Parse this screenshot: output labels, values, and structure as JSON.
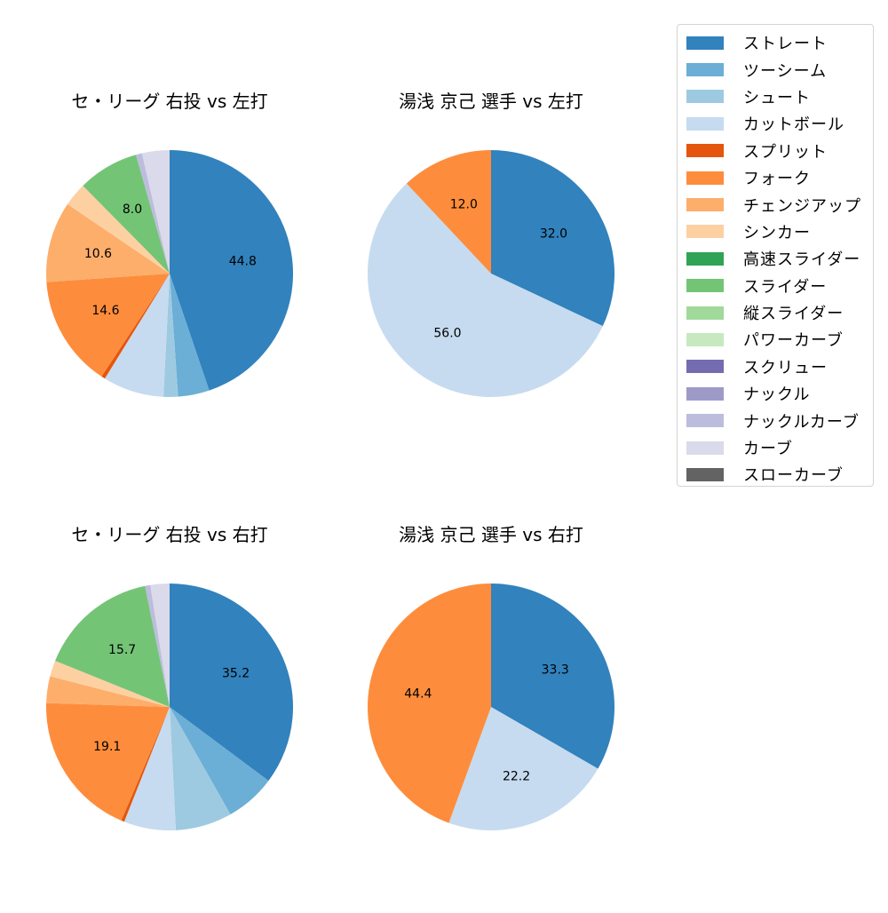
{
  "legend": {
    "items": [
      {
        "label": "ストレート",
        "color": "#3182bd"
      },
      {
        "label": "ツーシーム",
        "color": "#6baed6"
      },
      {
        "label": "シュート",
        "color": "#9ecae1"
      },
      {
        "label": "カットボール",
        "color": "#c6dbef"
      },
      {
        "label": "スプリット",
        "color": "#e6550d"
      },
      {
        "label": "フォーク",
        "color": "#fd8d3c"
      },
      {
        "label": "チェンジアップ",
        "color": "#fdae6b"
      },
      {
        "label": "シンカー",
        "color": "#fdd0a2"
      },
      {
        "label": "高速スライダー",
        "color": "#31a354"
      },
      {
        "label": "スライダー",
        "color": "#74c476"
      },
      {
        "label": "縦スライダー",
        "color": "#a1d99b"
      },
      {
        "label": "パワーカーブ",
        "color": "#c7e9c0"
      },
      {
        "label": "スクリュー",
        "color": "#756bb1"
      },
      {
        "label": "ナックル",
        "color": "#9e9ac8"
      },
      {
        "label": "ナックルカーブ",
        "color": "#bcbddc"
      },
      {
        "label": "カーブ",
        "color": "#dadaeb"
      },
      {
        "label": "スローカーブ",
        "color": "#636363"
      }
    ]
  },
  "chart_data": [
    {
      "type": "pie",
      "title": "セ・リーグ 右投 vs 左打",
      "start_angle": "top, clockwise",
      "slices": [
        {
          "name": "ストレート",
          "value": 44.8,
          "color": "#3182bd",
          "label": "44.8"
        },
        {
          "name": "ツーシーム",
          "value": 4.1,
          "color": "#6baed6"
        },
        {
          "name": "シュート",
          "value": 1.9,
          "color": "#9ecae1"
        },
        {
          "name": "カットボール",
          "value": 8.0,
          "color": "#c6dbef"
        },
        {
          "name": "スプリット",
          "value": 0.5,
          "color": "#e6550d"
        },
        {
          "name": "フォーク",
          "value": 14.6,
          "color": "#fd8d3c",
          "label": "14.6"
        },
        {
          "name": "チェンジアップ",
          "value": 10.6,
          "color": "#fdae6b",
          "label": "10.6"
        },
        {
          "name": "シンカー",
          "value": 3.1,
          "color": "#fdd0a2"
        },
        {
          "name": "スライダー",
          "value": 8.0,
          "color": "#74c476",
          "label": "8.0"
        },
        {
          "name": "ナックルカーブ",
          "value": 0.8,
          "color": "#bcbddc"
        },
        {
          "name": "カーブ",
          "value": 3.6,
          "color": "#dadaeb"
        }
      ]
    },
    {
      "type": "pie",
      "title": "湯浅 京己 選手 vs 左打",
      "start_angle": "top, clockwise",
      "slices": [
        {
          "name": "ストレート",
          "value": 32.0,
          "color": "#3182bd",
          "label": "32.0"
        },
        {
          "name": "カットボール",
          "value": 56.0,
          "color": "#c6dbef",
          "label": "56.0"
        },
        {
          "name": "フォーク",
          "value": 12.0,
          "color": "#fd8d3c",
          "label": "12.0"
        }
      ]
    },
    {
      "type": "pie",
      "title": "セ・リーグ 右投 vs 右打",
      "start_angle": "top, clockwise",
      "slices": [
        {
          "name": "ストレート",
          "value": 35.2,
          "color": "#3182bd",
          "label": "35.2"
        },
        {
          "name": "ツーシーム",
          "value": 6.6,
          "color": "#6baed6"
        },
        {
          "name": "シュート",
          "value": 7.4,
          "color": "#9ecae1"
        },
        {
          "name": "カットボール",
          "value": 6.8,
          "color": "#c6dbef"
        },
        {
          "name": "スプリット",
          "value": 0.4,
          "color": "#e6550d"
        },
        {
          "name": "フォーク",
          "value": 19.1,
          "color": "#fd8d3c",
          "label": "19.1"
        },
        {
          "name": "チェンジアップ",
          "value": 3.5,
          "color": "#fdae6b"
        },
        {
          "name": "シンカー",
          "value": 2.1,
          "color": "#fdd0a2"
        },
        {
          "name": "スライダー",
          "value": 15.7,
          "color": "#74c476",
          "label": "15.7"
        },
        {
          "name": "ナックルカーブ",
          "value": 0.7,
          "color": "#bcbddc"
        },
        {
          "name": "カーブ",
          "value": 2.5,
          "color": "#dadaeb"
        }
      ]
    },
    {
      "type": "pie",
      "title": "湯浅 京己 選手 vs 右打",
      "start_angle": "top, clockwise",
      "slices": [
        {
          "name": "ストレート",
          "value": 33.3,
          "color": "#3182bd",
          "label": "33.3"
        },
        {
          "name": "カットボール",
          "value": 22.2,
          "color": "#c6dbef",
          "label": "22.2"
        },
        {
          "name": "フォーク",
          "value": 44.4,
          "color": "#fd8d3c",
          "label": "44.4"
        }
      ]
    }
  ]
}
